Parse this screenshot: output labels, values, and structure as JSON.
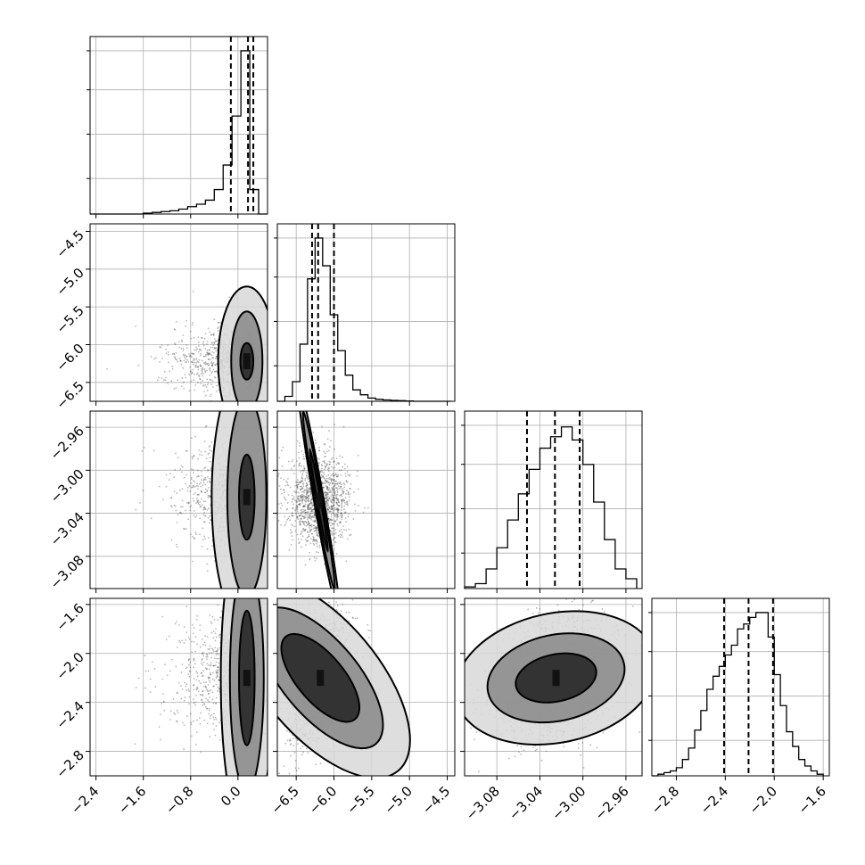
{
  "chart_data": {
    "type": "corner",
    "title": "",
    "grid": true,
    "parameters": [
      {
        "name": "",
        "range": [
          -2.5,
          0.5
        ],
        "ticks": [
          -2.4,
          -1.6,
          -0.8,
          0.0
        ],
        "tick_labels": [
          "−2.4",
          "−1.6",
          "−0.8",
          "0.0"
        ]
      },
      {
        "name": "",
        "range": [
          -6.75,
          -4.4
        ],
        "ticks": [
          -6.5,
          -6.0,
          -5.5,
          -5.0,
          -4.5
        ],
        "tick_labels": [
          "−6.5",
          "−6.0",
          "−5.5",
          "−5.0",
          "−4.5"
        ]
      },
      {
        "name": "",
        "range": [
          -3.11,
          -2.945
        ],
        "ticks": [
          -3.08,
          -3.04,
          -3.0,
          -2.96
        ],
        "tick_labels": [
          "−3.08",
          "−3.04",
          "−3.00",
          "−2.96"
        ]
      },
      {
        "name": "",
        "range": [
          -3.0,
          -1.55
        ],
        "ticks": [
          -2.8,
          -2.4,
          -2.0,
          -1.6
        ],
        "tick_labels": [
          "−2.8",
          "−2.4",
          "−2.0",
          "−1.6"
        ]
      }
    ],
    "histograms": [
      {
        "param": 0,
        "bin_edges": [
          -2.5,
          -2.35,
          -2.2,
          -2.05,
          -1.9,
          -1.75,
          -1.6,
          -1.45,
          -1.3,
          -1.15,
          -1.0,
          -0.85,
          -0.7,
          -0.55,
          -0.4,
          -0.25,
          -0.1,
          0.05,
          0.2,
          0.35,
          0.5
        ],
        "counts": [
          0,
          0,
          0,
          0,
          0,
          0,
          0.005,
          0.01,
          0.015,
          0.02,
          0.03,
          0.045,
          0.06,
          0.085,
          0.15,
          0.3,
          0.6,
          1.0,
          0.15,
          0,
          0
        ],
        "quantiles": [
          -0.12,
          0.17,
          0.26
        ]
      },
      {
        "param": 1,
        "bin_edges": [
          -6.75,
          -6.65,
          -6.55,
          -6.45,
          -6.35,
          -6.25,
          -6.15,
          -6.05,
          -5.95,
          -5.85,
          -5.75,
          -5.65,
          -5.55,
          -5.45,
          -5.35,
          -5.25,
          -5.15,
          -5.05,
          -4.95,
          -4.85,
          -4.75,
          -4.65,
          -4.55,
          -4.45
        ],
        "counts": [
          0,
          0.03,
          0.12,
          0.35,
          0.75,
          1.0,
          0.83,
          0.53,
          0.31,
          0.16,
          0.07,
          0.04,
          0.02,
          0.012,
          0.008,
          0.005,
          0.004,
          0.002,
          0,
          0,
          0,
          0,
          0
        ],
        "quantiles": [
          -6.29,
          -6.21,
          -6.0
        ]
      },
      {
        "param": 2,
        "bin_edges": [
          -3.11,
          -3.1,
          -3.09,
          -3.08,
          -3.07,
          -3.06,
          -3.05,
          -3.04,
          -3.03,
          -3.02,
          -3.01,
          -3.0,
          -2.99,
          -2.98,
          -2.97,
          -2.96,
          -2.95
        ],
        "counts": [
          0.01,
          0.03,
          0.12,
          0.25,
          0.42,
          0.58,
          0.73,
          0.86,
          0.93,
          0.99,
          0.91,
          0.76,
          0.53,
          0.3,
          0.12,
          0.06
        ],
        "quantiles": [
          -3.052,
          -3.026,
          -3.003
        ]
      },
      {
        "param": 3,
        "bin_edges": [
          -3.0,
          -2.95,
          -2.9,
          -2.85,
          -2.8,
          -2.75,
          -2.7,
          -2.65,
          -2.6,
          -2.55,
          -2.5,
          -2.45,
          -2.4,
          -2.35,
          -2.3,
          -2.25,
          -2.2,
          -2.15,
          -2.1,
          -2.05,
          -2.0,
          -1.95,
          -1.9,
          -1.85,
          -1.8,
          -1.75,
          -1.7,
          -1.65,
          -1.6
        ],
        "counts": [
          0,
          0.01,
          0.02,
          0.03,
          0.05,
          0.1,
          0.17,
          0.28,
          0.4,
          0.53,
          0.61,
          0.67,
          0.74,
          0.8,
          0.9,
          0.93,
          0.97,
          1.0,
          1.0,
          0.85,
          0.62,
          0.43,
          0.27,
          0.18,
          0.1,
          0.06,
          0.03,
          0.01
        ],
        "quantiles": [
          -2.41,
          -2.21,
          -2.01
        ]
      }
    ],
    "pairs": [
      {
        "x_param": 0,
        "y_param": 1,
        "center": [
          0.15,
          -6.22
        ],
        "spread": [
          0.45,
          0.22
        ],
        "contours": [
          [
            0.19,
            0.05,
            0.11
          ],
          [
            0.4,
            0.12,
            0.3
          ],
          [
            0.62,
            0.22,
            0.45
          ]
        ]
      },
      {
        "x_param": 0,
        "y_param": 2,
        "center": [
          0.15,
          -3.025
        ],
        "spread": [
          0.45,
          0.025
        ],
        "contours": [
          [
            0.17,
            0.06,
            0.018
          ],
          [
            0.4,
            0.15,
            0.042
          ],
          [
            0.62,
            0.27,
            0.056
          ]
        ]
      },
      {
        "x_param": 1,
        "y_param": 2,
        "center": [
          -6.2,
          -3.028
        ],
        "spread": [
          0.2,
          0.02
        ],
        "contours": [
          [
            0.08,
            0.01,
            0.022
          ],
          [
            0.18,
            0.019,
            0.038
          ],
          [
            0.28,
            0.027,
            0.05
          ]
        ]
      },
      {
        "x_param": 0,
        "y_param": 3,
        "center": [
          0.15,
          -2.2
        ],
        "spread": [
          0.45,
          0.25
        ],
        "contours": [
          [
            0.17,
            0.06,
            0.25
          ],
          [
            0.4,
            0.13,
            0.42
          ],
          [
            0.62,
            0.2,
            0.58
          ]
        ]
      },
      {
        "x_param": 1,
        "y_param": 3,
        "center": [
          -6.18,
          -2.2
        ],
        "spread": [
          0.2,
          0.25
        ],
        "contours": [
          [
            0.09,
            0.13,
            0.2
          ],
          [
            0.17,
            0.21,
            0.32
          ],
          [
            0.27,
            0.32,
            0.45
          ]
        ]
      },
      {
        "x_param": 2,
        "y_param": 3,
        "center": [
          -3.025,
          -2.2
        ],
        "spread": [
          0.028,
          0.25
        ],
        "contours": [
          [
            0.02,
            0.12,
            0
          ],
          [
            0.034,
            0.22,
            0
          ],
          [
            0.05,
            0.33,
            0
          ]
        ]
      }
    ]
  }
}
